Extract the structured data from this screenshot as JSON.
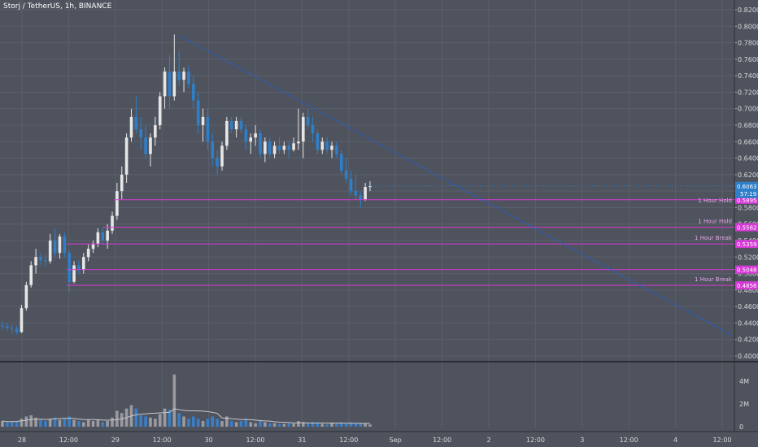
{
  "header": {
    "title": "Storj / TetherUS, 1h, BINANCE"
  },
  "colors": {
    "background": "#4f535e",
    "grid": "#5b5f6a",
    "up_candle": "#e6e6e6",
    "down_candle": "#2f7fc8",
    "trendline": "#2060d8",
    "level_line": "#d63ad6",
    "level_text": "#e6a8e6",
    "volume_up": "#9a9aa0",
    "volume_down": "#3a7fc6",
    "volume_ma": "#c8c8c8",
    "price_badge": "#2f7fc8",
    "level_badge": "#d63ad6"
  },
  "chart_data": {
    "type": "candlestick",
    "title": "Storj / TetherUS, 1h, BINANCE",
    "ylim": [
      0.4,
      0.82
    ],
    "price_axis_ticks": [
      "0.8200",
      "0.8000",
      "0.7800",
      "0.7600",
      "0.7400",
      "0.7200",
      "0.7000",
      "0.6800",
      "0.6600",
      "0.6400",
      "0.6200",
      "0.6000",
      "0.5800",
      "0.5600",
      "0.5400",
      "0.5200",
      "0.5000",
      "0.4800",
      "0.4600",
      "0.4400",
      "0.4200",
      "0.4000"
    ],
    "time_axis_ticks": [
      "28",
      "12:00",
      "29",
      "12:00",
      "30",
      "12:00",
      "31",
      "12:00",
      "Sep",
      "12:00",
      "2",
      "12:00",
      "3",
      "12:00",
      "4",
      "12:00"
    ],
    "current_price": {
      "value": 0.6063,
      "label": "0.6063",
      "countdown": "57:19"
    },
    "levels": [
      {
        "value": 0.5895,
        "badge": "0.5895",
        "label": "1 Hour Hold"
      },
      {
        "value": 0.5562,
        "badge": "0.5562",
        "label": "1 Hour Hold"
      },
      {
        "value": 0.5359,
        "badge": "0.5359",
        "label": "1 Hour Break"
      },
      {
        "value": 0.5048,
        "badge": "0.5048",
        "label": ""
      },
      {
        "value": 0.4856,
        "badge": "0.4856",
        "label": "1 Hour Break"
      }
    ],
    "trendline": {
      "from_price": 0.789,
      "to_price": 0.425
    },
    "volume_axis_ticks": [
      "4M",
      "2M",
      "0"
    ],
    "volume_max": 4800000,
    "candles": [
      [
        0.437,
        0.442,
        0.432,
        0.436
      ],
      [
        0.436,
        0.44,
        0.43,
        0.434
      ],
      [
        0.434,
        0.438,
        0.428,
        0.433
      ],
      [
        0.433,
        0.437,
        0.426,
        0.429
      ],
      [
        0.429,
        0.462,
        0.428,
        0.458
      ],
      [
        0.458,
        0.49,
        0.455,
        0.486
      ],
      [
        0.486,
        0.515,
        0.483,
        0.51
      ],
      [
        0.51,
        0.53,
        0.5,
        0.52
      ],
      [
        0.52,
        0.525,
        0.51,
        0.516
      ],
      [
        0.516,
        0.522,
        0.508,
        0.515
      ],
      [
        0.515,
        0.548,
        0.512,
        0.54
      ],
      [
        0.54,
        0.555,
        0.52,
        0.525
      ],
      [
        0.525,
        0.548,
        0.518,
        0.545
      ],
      [
        0.545,
        0.55,
        0.52,
        0.525
      ],
      [
        0.525,
        0.528,
        0.478,
        0.49
      ],
      [
        0.49,
        0.515,
        0.488,
        0.51
      ],
      [
        0.51,
        0.516,
        0.5,
        0.505
      ],
      [
        0.505,
        0.525,
        0.5,
        0.52
      ],
      [
        0.52,
        0.535,
        0.515,
        0.53
      ],
      [
        0.53,
        0.54,
        0.525,
        0.536
      ],
      [
        0.536,
        0.555,
        0.532,
        0.55
      ],
      [
        0.55,
        0.556,
        0.535,
        0.54
      ],
      [
        0.54,
        0.56,
        0.53,
        0.552
      ],
      [
        0.552,
        0.575,
        0.548,
        0.57
      ],
      [
        0.57,
        0.61,
        0.565,
        0.6
      ],
      [
        0.6,
        0.63,
        0.59,
        0.62
      ],
      [
        0.62,
        0.67,
        0.61,
        0.665
      ],
      [
        0.665,
        0.7,
        0.66,
        0.69
      ],
      [
        0.69,
        0.715,
        0.67,
        0.675
      ],
      [
        0.675,
        0.69,
        0.65,
        0.665
      ],
      [
        0.665,
        0.68,
        0.64,
        0.645
      ],
      [
        0.645,
        0.67,
        0.63,
        0.665
      ],
      [
        0.665,
        0.69,
        0.655,
        0.68
      ],
      [
        0.68,
        0.72,
        0.675,
        0.715
      ],
      [
        0.715,
        0.75,
        0.7,
        0.745
      ],
      [
        0.745,
        0.765,
        0.7,
        0.715
      ],
      [
        0.715,
        0.79,
        0.71,
        0.745
      ],
      [
        0.745,
        0.77,
        0.728,
        0.735
      ],
      [
        0.735,
        0.75,
        0.72,
        0.745
      ],
      [
        0.745,
        0.752,
        0.725,
        0.73
      ],
      [
        0.73,
        0.74,
        0.7,
        0.71
      ],
      [
        0.71,
        0.72,
        0.67,
        0.68
      ],
      [
        0.68,
        0.7,
        0.66,
        0.69
      ],
      [
        0.69,
        0.7,
        0.65,
        0.66
      ],
      [
        0.66,
        0.67,
        0.63,
        0.64
      ],
      [
        0.64,
        0.65,
        0.62,
        0.63
      ],
      [
        0.63,
        0.66,
        0.625,
        0.655
      ],
      [
        0.655,
        0.69,
        0.65,
        0.685
      ],
      [
        0.685,
        0.69,
        0.67,
        0.675
      ],
      [
        0.675,
        0.69,
        0.665,
        0.685
      ],
      [
        0.685,
        0.69,
        0.67,
        0.675
      ],
      [
        0.675,
        0.68,
        0.65,
        0.66
      ],
      [
        0.66,
        0.67,
        0.645,
        0.665
      ],
      [
        0.665,
        0.68,
        0.655,
        0.67
      ],
      [
        0.67,
        0.675,
        0.64,
        0.645
      ],
      [
        0.645,
        0.665,
        0.635,
        0.66
      ],
      [
        0.66,
        0.665,
        0.64,
        0.645
      ],
      [
        0.645,
        0.66,
        0.64,
        0.655
      ],
      [
        0.655,
        0.665,
        0.645,
        0.65
      ],
      [
        0.65,
        0.66,
        0.645,
        0.655
      ],
      [
        0.655,
        0.66,
        0.64,
        0.65
      ],
      [
        0.65,
        0.665,
        0.648,
        0.658
      ],
      [
        0.658,
        0.7,
        0.65,
        0.66
      ],
      [
        0.66,
        0.695,
        0.64,
        0.69
      ],
      [
        0.69,
        0.7,
        0.675,
        0.68
      ],
      [
        0.68,
        0.69,
        0.66,
        0.67
      ],
      [
        0.67,
        0.675,
        0.645,
        0.65
      ],
      [
        0.65,
        0.665,
        0.645,
        0.66
      ],
      [
        0.66,
        0.665,
        0.645,
        0.65
      ],
      [
        0.65,
        0.66,
        0.64,
        0.655
      ],
      [
        0.655,
        0.66,
        0.64,
        0.645
      ],
      [
        0.645,
        0.65,
        0.62,
        0.625
      ],
      [
        0.625,
        0.64,
        0.61,
        0.615
      ],
      [
        0.615,
        0.625,
        0.595,
        0.6
      ],
      [
        0.6,
        0.62,
        0.59,
        0.595
      ],
      [
        0.595,
        0.6,
        0.58,
        0.59
      ],
      [
        0.59,
        0.61,
        0.588,
        0.605
      ],
      [
        0.605,
        0.612,
        0.6,
        0.606
      ]
    ],
    "volumes": [
      [
        500000,
        0
      ],
      [
        400000,
        1
      ],
      [
        450000,
        1
      ],
      [
        500000,
        1
      ],
      [
        700000,
        0
      ],
      [
        900000,
        0
      ],
      [
        1000000,
        0
      ],
      [
        800000,
        0
      ],
      [
        600000,
        1
      ],
      [
        500000,
        1
      ],
      [
        700000,
        0
      ],
      [
        800000,
        1
      ],
      [
        600000,
        0
      ],
      [
        700000,
        1
      ],
      [
        900000,
        1
      ],
      [
        600000,
        0
      ],
      [
        500000,
        1
      ],
      [
        400000,
        0
      ],
      [
        600000,
        0
      ],
      [
        500000,
        0
      ],
      [
        600000,
        0
      ],
      [
        400000,
        1
      ],
      [
        500000,
        0
      ],
      [
        800000,
        0
      ],
      [
        1400000,
        0
      ],
      [
        1200000,
        0
      ],
      [
        1600000,
        0
      ],
      [
        1900000,
        0
      ],
      [
        1600000,
        1
      ],
      [
        1000000,
        1
      ],
      [
        900000,
        1
      ],
      [
        800000,
        0
      ],
      [
        700000,
        0
      ],
      [
        1100000,
        0
      ],
      [
        1600000,
        0
      ],
      [
        1500000,
        1
      ],
      [
        4600000,
        0
      ],
      [
        1200000,
        1
      ],
      [
        900000,
        0
      ],
      [
        700000,
        1
      ],
      [
        900000,
        1
      ],
      [
        700000,
        1
      ],
      [
        500000,
        0
      ],
      [
        700000,
        1
      ],
      [
        900000,
        1
      ],
      [
        700000,
        1
      ],
      [
        500000,
        0
      ],
      [
        900000,
        0
      ],
      [
        500000,
        1
      ],
      [
        400000,
        0
      ],
      [
        500000,
        1
      ],
      [
        700000,
        1
      ],
      [
        400000,
        0
      ],
      [
        300000,
        0
      ],
      [
        500000,
        1
      ],
      [
        400000,
        0
      ],
      [
        300000,
        1
      ],
      [
        300000,
        0
      ],
      [
        250000,
        1
      ],
      [
        250000,
        0
      ],
      [
        300000,
        1
      ],
      [
        250000,
        0
      ],
      [
        500000,
        0
      ],
      [
        400000,
        0
      ],
      [
        300000,
        1
      ],
      [
        400000,
        1
      ],
      [
        300000,
        1
      ],
      [
        250000,
        0
      ],
      [
        200000,
        1
      ],
      [
        300000,
        0
      ],
      [
        250000,
        1
      ],
      [
        300000,
        1
      ],
      [
        250000,
        1
      ],
      [
        400000,
        1
      ],
      [
        300000,
        1
      ],
      [
        350000,
        1
      ],
      [
        300000,
        0
      ],
      [
        200000,
        0
      ]
    ]
  }
}
